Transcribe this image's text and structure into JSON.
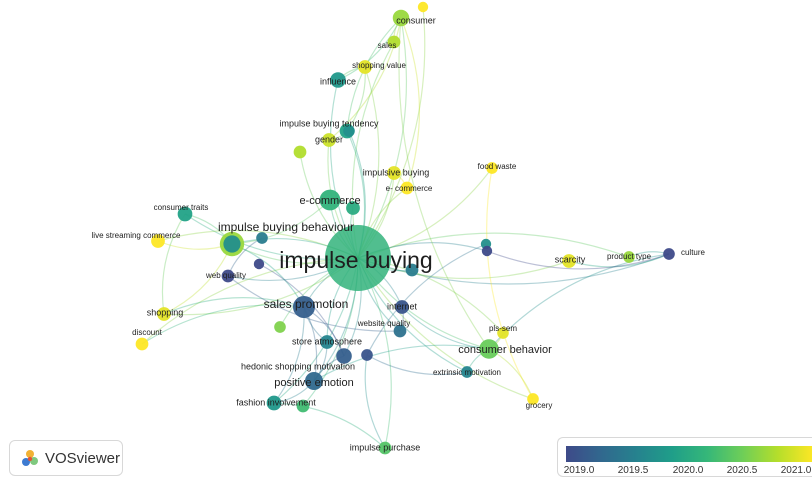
{
  "colors": {
    "scale": [
      "#3e4a89",
      "#31688e",
      "#26828e",
      "#1f9e89",
      "#35b779",
      "#6ece58",
      "#b5de2b",
      "#fde725"
    ],
    "edge_opacity": 0.35
  },
  "brand": {
    "label": "VOSviewer",
    "icon": "vosviewer-logo-icon"
  },
  "legend": {
    "ticks": [
      "2019.0",
      "2019.5",
      "2020.0",
      "2020.5",
      "2021.0"
    ]
  },
  "nodes": [
    {
      "id": "impulse_buying",
      "label": "impulse buying",
      "year": 2020.1,
      "weight": 100,
      "label_size": 23
    },
    {
      "id": "impulse_buying_behaviour",
      "label": "impulse buying behaviour",
      "year": 2020.6,
      "weight": 22,
      "label_size": 12
    },
    {
      "id": "sales_promotion",
      "label": "sales promotion",
      "year": 2019.2,
      "weight": 18,
      "label_size": 12
    },
    {
      "id": "e_commerce",
      "label": "e-commerce",
      "year": 2020.1,
      "weight": 16,
      "label_size": 11
    },
    {
      "id": "consumer_behavior",
      "label": "consumer behavior",
      "year": 2020.4,
      "weight": 14,
      "label_size": 11
    },
    {
      "id": "positive_emotion",
      "label": "positive emotion",
      "year": 2019.3,
      "weight": 12,
      "label_size": 11
    },
    {
      "id": "consumer",
      "label": "consumer",
      "year": 2020.6,
      "weight": 10,
      "label_size": 9
    },
    {
      "id": "sales",
      "label": "sales",
      "year": 2020.7,
      "weight": 6,
      "label_size": 8
    },
    {
      "id": "shopping_value",
      "label": "shopping value",
      "year": 2020.9,
      "weight": 7,
      "label_size": 8
    },
    {
      "id": "influence",
      "label": "influence",
      "year": 2019.8,
      "weight": 9,
      "label_size": 9
    },
    {
      "id": "impulse_buying_tendency",
      "label": "impulse buying tendency",
      "year": 2019.9,
      "weight": 8,
      "label_size": 9
    },
    {
      "id": "gender",
      "label": "gender",
      "year": 2020.8,
      "weight": 7,
      "label_size": 9
    },
    {
      "id": "impulsive_buying",
      "label": "impulsive buying",
      "year": 2020.9,
      "weight": 7,
      "label_size": 9
    },
    {
      "id": "e_commerce_2",
      "label": "e- commerce",
      "year": 2021.0,
      "weight": 6,
      "label_size": 8
    },
    {
      "id": "food_waste",
      "label": "food waste",
      "year": 2021.0,
      "weight": 5,
      "label_size": 8
    },
    {
      "id": "consumer_traits",
      "label": "consumer traits",
      "year": 2019.9,
      "weight": 8,
      "label_size": 8
    },
    {
      "id": "live_streaming_commerce",
      "label": "live streaming commerce",
      "year": 2021.0,
      "weight": 7,
      "label_size": 8
    },
    {
      "id": "web_quality",
      "label": "web quality",
      "year": 2019.0,
      "weight": 6,
      "label_size": 8
    },
    {
      "id": "scarcity",
      "label": "scarcity",
      "year": 2020.9,
      "weight": 7,
      "label_size": 9
    },
    {
      "id": "product_type",
      "label": "product type",
      "year": 2020.6,
      "weight": 5,
      "label_size": 8
    },
    {
      "id": "culture",
      "label": "culture",
      "year": 2019.0,
      "weight": 5,
      "label_size": 8
    },
    {
      "id": "shopping",
      "label": "shopping",
      "year": 2020.9,
      "weight": 7,
      "label_size": 9
    },
    {
      "id": "discount",
      "label": "discount",
      "year": 2021.0,
      "weight": 6,
      "label_size": 8
    },
    {
      "id": "internet",
      "label": "internet",
      "year": 2019.1,
      "weight": 7,
      "label_size": 9
    },
    {
      "id": "website_quality",
      "label": "website quality",
      "year": 2019.4,
      "weight": 6,
      "label_size": 8
    },
    {
      "id": "pls_sem",
      "label": "pls-sem",
      "year": 2020.9,
      "weight": 5,
      "label_size": 8
    },
    {
      "id": "store_atmosphere",
      "label": "store atmosphere",
      "year": 2019.6,
      "weight": 7,
      "label_size": 9
    },
    {
      "id": "hedonic_shopping_motivation",
      "label": "hedonic shopping motivation",
      "year": 2019.2,
      "weight": 9,
      "label_size": 9
    },
    {
      "id": "extrinsic_motivation",
      "label": "extrinsic motivation",
      "year": 2019.6,
      "weight": 5,
      "label_size": 8
    },
    {
      "id": "fashion_involvement",
      "label": "fashion involvement",
      "year": 2019.8,
      "weight": 8,
      "label_size": 9
    },
    {
      "id": "grocery",
      "label": "grocery",
      "year": 2021.0,
      "weight": 5,
      "label_size": 8
    },
    {
      "id": "impulse_purchase",
      "label": "impulse purchase",
      "year": 2020.3,
      "weight": 6,
      "label_size": 9
    },
    {
      "id": "u1",
      "label": "",
      "year": 2019.7,
      "weight": 11
    },
    {
      "id": "u2",
      "label": "",
      "year": 2020.0,
      "weight": 7
    },
    {
      "id": "u3",
      "label": "",
      "year": 2019.5,
      "weight": 6
    },
    {
      "id": "u4",
      "label": "",
      "year": 2019.1,
      "weight": 5
    },
    {
      "id": "u5",
      "label": "",
      "year": 2019.0,
      "weight": 4
    },
    {
      "id": "u6",
      "label": "",
      "year": 2020.7,
      "weight": 6
    },
    {
      "id": "u7",
      "label": "",
      "year": 2019.5,
      "weight": 5
    },
    {
      "id": "u8",
      "label": "",
      "year": 2019.7,
      "weight": 4
    },
    {
      "id": "u9",
      "label": "",
      "year": 2020.5,
      "weight": 5
    },
    {
      "id": "u10",
      "label": "",
      "year": 2020.2,
      "weight": 6
    },
    {
      "id": "u11",
      "label": "",
      "year": 2021.0,
      "weight": 4
    },
    {
      "id": "u12",
      "label": "",
      "year": 2019.0,
      "weight": 4
    },
    {
      "id": "u13",
      "label": "",
      "year": 2019.7,
      "weight": 5
    }
  ],
  "edges": [
    [
      "impulse_buying",
      "impulse_buying_behaviour"
    ],
    [
      "impulse_buying",
      "sales_promotion"
    ],
    [
      "impulse_buying",
      "e_commerce"
    ],
    [
      "impulse_buying",
      "consumer_behavior"
    ],
    [
      "impulse_buying",
      "positive_emotion"
    ],
    [
      "impulse_buying",
      "consumer"
    ],
    [
      "impulse_buying",
      "sales"
    ],
    [
      "impulse_buying",
      "shopping_value"
    ],
    [
      "impulse_buying",
      "influence"
    ],
    [
      "impulse_buying",
      "impulse_buying_tendency"
    ],
    [
      "impulse_buying",
      "gender"
    ],
    [
      "impulse_buying",
      "impulsive_buying"
    ],
    [
      "impulse_buying",
      "e_commerce_2"
    ],
    [
      "impulse_buying",
      "food_waste"
    ],
    [
      "impulse_buying",
      "consumer_traits"
    ],
    [
      "impulse_buying",
      "live_streaming_commerce"
    ],
    [
      "impulse_buying",
      "web_quality"
    ],
    [
      "impulse_buying",
      "scarcity"
    ],
    [
      "impulse_buying",
      "product_type"
    ],
    [
      "impulse_buying",
      "culture"
    ],
    [
      "impulse_buying",
      "shopping"
    ],
    [
      "impulse_buying",
      "discount"
    ],
    [
      "impulse_buying",
      "internet"
    ],
    [
      "impulse_buying",
      "website_quality"
    ],
    [
      "impulse_buying",
      "pls_sem"
    ],
    [
      "impulse_buying",
      "store_atmosphere"
    ],
    [
      "impulse_buying",
      "hedonic_shopping_motivation"
    ],
    [
      "impulse_buying",
      "extrinsic_motivation"
    ],
    [
      "impulse_buying",
      "fashion_involvement"
    ],
    [
      "impulse_buying",
      "grocery"
    ],
    [
      "impulse_buying",
      "impulse_purchase"
    ],
    [
      "impulse_buying",
      "u1"
    ],
    [
      "impulse_buying",
      "u2"
    ],
    [
      "impulse_buying",
      "u3"
    ],
    [
      "impulse_buying",
      "u6"
    ],
    [
      "impulse_buying",
      "u9"
    ],
    [
      "impulse_buying",
      "u10"
    ],
    [
      "impulse_buying",
      "u11"
    ],
    [
      "impulse_buying",
      "u12"
    ],
    [
      "impulse_buying",
      "u13"
    ],
    [
      "impulse_buying_behaviour",
      "sales_promotion"
    ],
    [
      "impulse_buying_behaviour",
      "consumer_traits"
    ],
    [
      "impulse_buying_behaviour",
      "live_streaming_commerce"
    ],
    [
      "impulse_buying_behaviour",
      "e_commerce"
    ],
    [
      "impulse_buying_behaviour",
      "shopping"
    ],
    [
      "impulse_buying_behaviour",
      "u1"
    ],
    [
      "sales_promotion",
      "positive_emotion"
    ],
    [
      "sales_promotion",
      "store_atmosphere"
    ],
    [
      "sales_promotion",
      "hedonic_shopping_motivation"
    ],
    [
      "sales_promotion",
      "discount"
    ],
    [
      "sales_promotion",
      "fashion_involvement"
    ],
    [
      "sales_promotion",
      "shopping"
    ],
    [
      "positive_emotion",
      "hedonic_shopping_motivation"
    ],
    [
      "positive_emotion",
      "store_atmosphere"
    ],
    [
      "positive_emotion",
      "fashion_involvement"
    ],
    [
      "consumer",
      "sales"
    ],
    [
      "consumer",
      "influence"
    ],
    [
      "consumer",
      "impulse_buying_tendency"
    ],
    [
      "consumer",
      "e_commerce_2"
    ],
    [
      "consumer",
      "consumer_behavior"
    ],
    [
      "consumer",
      "gender"
    ],
    [
      "culture",
      "product_type"
    ],
    [
      "culture",
      "scarcity"
    ],
    [
      "culture",
      "consumer_behavior"
    ],
    [
      "culture",
      "u12"
    ],
    [
      "consumer_behavior",
      "pls_sem"
    ],
    [
      "consumer_behavior",
      "grocery"
    ],
    [
      "consumer_behavior",
      "extrinsic_motivation"
    ],
    [
      "consumer_behavior",
      "internet"
    ],
    [
      "consumer_behavior",
      "positive_emotion"
    ],
    [
      "grocery",
      "food_waste"
    ],
    [
      "impulse_purchase",
      "fashion_involvement"
    ],
    [
      "impulse_purchase",
      "u4"
    ],
    [
      "web_quality",
      "website_quality"
    ],
    [
      "web_quality",
      "u7"
    ],
    [
      "website_quality",
      "internet"
    ],
    [
      "impulsive_buying",
      "e_commerce_2"
    ],
    [
      "gender",
      "impulse_buying_tendency"
    ],
    [
      "influence",
      "shopping_value"
    ],
    [
      "u4",
      "extrinsic_motivation"
    ],
    [
      "u5",
      "hedonic_shopping_motivation"
    ],
    [
      "u8",
      "u4"
    ],
    [
      "e_commerce",
      "u2"
    ],
    [
      "impulse_buying_tendency",
      "shopping_value"
    ],
    [
      "shopping",
      "consumer_traits"
    ]
  ]
}
